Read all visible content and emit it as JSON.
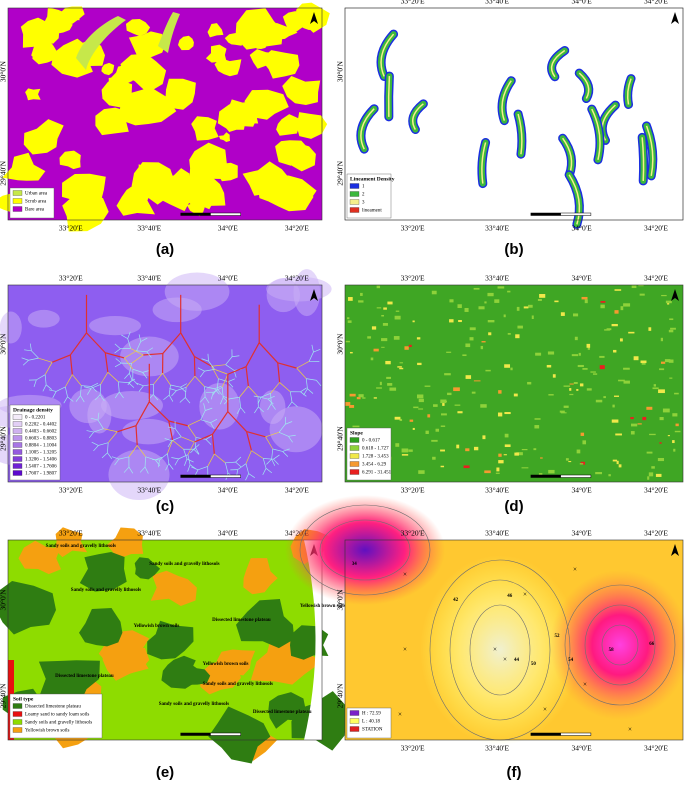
{
  "panels": [
    {
      "caption": "(a)",
      "top": [],
      "bottom": [
        "33°20'E",
        "33°40'E",
        "34°0'E",
        "34°20'E"
      ],
      "left": [
        "30°0'N",
        "29°40'N"
      ],
      "right": [],
      "legend_title": null,
      "legend": [
        {
          "label": "Urban area",
          "color": "#c6e84a"
        },
        {
          "label": "Scrub area",
          "color": "#ffff00"
        },
        {
          "label": "Bare area",
          "color": "#b000c8"
        }
      ],
      "places": []
    },
    {
      "caption": "(b)",
      "top": [
        "33°20'E",
        "33°40'E",
        "34°0'E",
        "34°20'E"
      ],
      "bottom": [
        "33°20'E",
        "33°40'E",
        "34°0'E",
        "34°20'E"
      ],
      "left": [
        "30°0'N",
        "29°40'N"
      ],
      "right": [],
      "legend_title": "Lineament Density",
      "legend": [
        {
          "label": "1",
          "color": "#1a2ee0"
        },
        {
          "label": "2",
          "color": "#3cb83c"
        },
        {
          "label": "3",
          "color": "#f5f08c"
        },
        {
          "label": "lineament",
          "color": "#e03020"
        }
      ],
      "places": []
    },
    {
      "caption": "(c)",
      "top": [
        "33°20'E",
        "33°40'E",
        "34°0'E",
        "34°20'E"
      ],
      "bottom": [
        "33°20'E",
        "33°40'E",
        "34°0'E",
        "34°20'E"
      ],
      "left": [
        "30°0'N",
        "29°40'N"
      ],
      "right": [],
      "legend_title": "Drainage density",
      "legend": [
        {
          "label": "0 - 0.2201",
          "color": "#f4ecfa"
        },
        {
          "label": "0.2202 - 0.4402",
          "color": "#e2cff5"
        },
        {
          "label": "0.4403 - 0.6602",
          "color": "#cfb2ef"
        },
        {
          "label": "0.6603 - 0.8803",
          "color": "#bb94ea"
        },
        {
          "label": "0.8804 - 1.1004",
          "color": "#a877e4"
        },
        {
          "label": "1.1005 - 1.3205",
          "color": "#955adf"
        },
        {
          "label": "1.3206 - 1.5406",
          "color": "#823ed9"
        },
        {
          "label": "1.5407 - 1.7606",
          "color": "#6f22d4"
        },
        {
          "label": "1.7607 - 1.9807",
          "color": "#5c08ce"
        }
      ],
      "places": []
    },
    {
      "caption": "(d)",
      "top": [
        "33°20'E",
        "33°40'E",
        "34°0'E",
        "34°20'E"
      ],
      "bottom": [
        "33°20'E",
        "33°40'E",
        "34°0'E",
        "34°20'E"
      ],
      "left": [
        "30°0'N",
        "29°40'N"
      ],
      "right": [
        "30°0'N",
        "29°40'N"
      ],
      "legend_title": "Slope",
      "legend": [
        {
          "label": "0 - 0.617",
          "color": "#2e9e1e"
        },
        {
          "label": "0.618 - 1.727",
          "color": "#8ed23a"
        },
        {
          "label": "1.728 - 3.453",
          "color": "#f0e84a"
        },
        {
          "label": "3.454 - 6.29",
          "color": "#f59a30"
        },
        {
          "label": "6.291 - 31.451",
          "color": "#e82020"
        }
      ],
      "places": []
    },
    {
      "caption": "(e)",
      "top": [
        "33°20'E",
        "33°40'E",
        "34°0'E",
        "34°20'E"
      ],
      "bottom": [],
      "left": [
        "30°0'N",
        "29°40'N"
      ],
      "right": [],
      "legend_title": "Soil type",
      "legend": [
        {
          "label": "Dissected limestone plateau",
          "color": "#2f7d12"
        },
        {
          "label": "Loamy sand to sandy loam soils",
          "color": "#e81010"
        },
        {
          "label": "Sandy soils and gravelly lithosols",
          "color": "#8edc00"
        },
        {
          "label": "Yellowish brown soils",
          "color": "#f5a010"
        }
      ],
      "places": [
        "Sandy soils and gravelly lithosols",
        "Sandy soils and gravelly lithosols",
        "Sandy soils and gravelly lithosols",
        "Yellowish brown soils",
        "Dissected limestone plateau",
        "Yellowish brown soils",
        "Yellowish brown soils",
        "Dissected limestone plateau",
        "Sandy soils and gravelly lithosols",
        "Sandy soils and gravelly lithosols",
        "Dissected limestone plateau"
      ]
    },
    {
      "caption": "(f)",
      "top": [
        "33°20'E",
        "33°40'E",
        "34°0'E",
        "34°20'E"
      ],
      "bottom": [
        "33°20'E",
        "33°40'E",
        "34°0'E",
        "34°20'E"
      ],
      "left": [
        "30°0'N",
        "29°40'N"
      ],
      "right": [
        "30°0'N",
        "29°40'N"
      ],
      "legend_title": null,
      "legend": [
        {
          "label": "H : 72.59",
          "color": "#7a20c8"
        },
        {
          "label": "L : 40.18",
          "color": "#ffff60"
        },
        {
          "label": "STATION",
          "color": "#e02020"
        }
      ],
      "places": [
        "34",
        "42",
        "46",
        "44",
        "50",
        "52",
        "54",
        "58",
        "66"
      ]
    }
  ]
}
